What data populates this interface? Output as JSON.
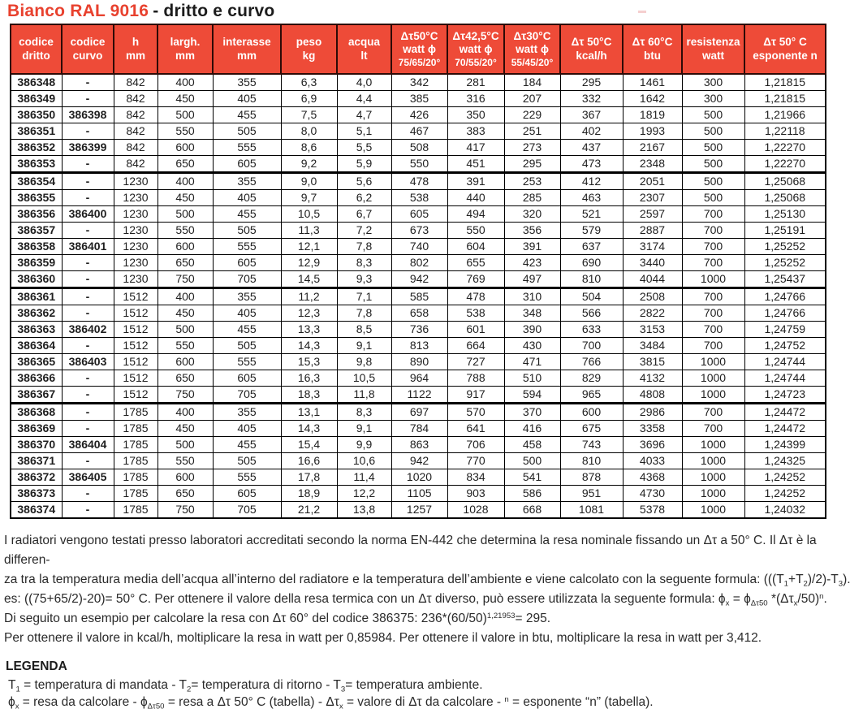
{
  "title": {
    "product": "Bianco RAL 9016",
    "variant": "- dritto e curvo"
  },
  "colors": {
    "header_bg": "#ee4b38",
    "header_border": "#2d0a06",
    "title_red": "#e8412e",
    "text": "#1f1f1f"
  },
  "table": {
    "headers": [
      [
        "codice",
        "dritto"
      ],
      [
        "codice",
        "curvo"
      ],
      [
        "h",
        "mm"
      ],
      [
        "largh.",
        "mm"
      ],
      [
        "interasse",
        "mm"
      ],
      [
        "peso",
        "kg"
      ],
      [
        "acqua",
        "lt"
      ],
      [
        "Δτ50°C",
        "watt ϕ",
        "75/65/20°"
      ],
      [
        "Δτ42,5°C",
        "watt ϕ",
        "70/55/20°"
      ],
      [
        "Δτ30°C",
        "watt ϕ",
        "55/45/20°"
      ],
      [
        "Δτ 50°C",
        "kcal/h"
      ],
      [
        "Δτ 60°C",
        "btu"
      ],
      [
        "resistenza",
        "watt"
      ],
      [
        "Δτ 50° C",
        "esponente n"
      ]
    ],
    "rows": [
      [
        "386348",
        "-",
        "842",
        "400",
        "355",
        "6,3",
        "4,0",
        "342",
        "281",
        "184",
        "295",
        "1461",
        "300",
        "1,21815"
      ],
      [
        "386349",
        "-",
        "842",
        "450",
        "405",
        "6,9",
        "4,4",
        "385",
        "316",
        "207",
        "332",
        "1642",
        "300",
        "1,21815"
      ],
      [
        "386350",
        "386398",
        "842",
        "500",
        "455",
        "7,5",
        "4,7",
        "426",
        "350",
        "229",
        "367",
        "1819",
        "500",
        "1,21966"
      ],
      [
        "386351",
        "-",
        "842",
        "550",
        "505",
        "8,0",
        "5,1",
        "467",
        "383",
        "251",
        "402",
        "1993",
        "500",
        "1,22118"
      ],
      [
        "386352",
        "386399",
        "842",
        "600",
        "555",
        "8,6",
        "5,5",
        "508",
        "417",
        "273",
        "437",
        "2167",
        "500",
        "1,22270"
      ],
      [
        "386353",
        "-",
        "842",
        "650",
        "605",
        "9,2",
        "5,9",
        "550",
        "451",
        "295",
        "473",
        "2348",
        "500",
        "1,22270"
      ],
      [
        "386354",
        "-",
        "1230",
        "400",
        "355",
        "9,0",
        "5,6",
        "478",
        "391",
        "253",
        "412",
        "2051",
        "500",
        "1,25068"
      ],
      [
        "386355",
        "-",
        "1230",
        "450",
        "405",
        "9,7",
        "6,2",
        "538",
        "440",
        "285",
        "463",
        "2307",
        "500",
        "1,25068"
      ],
      [
        "386356",
        "386400",
        "1230",
        "500",
        "455",
        "10,5",
        "6,7",
        "605",
        "494",
        "320",
        "521",
        "2597",
        "700",
        "1,25130"
      ],
      [
        "386357",
        "-",
        "1230",
        "550",
        "505",
        "11,3",
        "7,2",
        "673",
        "550",
        "356",
        "579",
        "2887",
        "700",
        "1,25191"
      ],
      [
        "386358",
        "386401",
        "1230",
        "600",
        "555",
        "12,1",
        "7,8",
        "740",
        "604",
        "391",
        "637",
        "3174",
        "700",
        "1,25252"
      ],
      [
        "386359",
        "-",
        "1230",
        "650",
        "605",
        "12,9",
        "8,3",
        "802",
        "655",
        "423",
        "690",
        "3440",
        "700",
        "1,25252"
      ],
      [
        "386360",
        "-",
        "1230",
        "750",
        "705",
        "14,5",
        "9,3",
        "942",
        "769",
        "497",
        "810",
        "4044",
        "1000",
        "1,25437"
      ],
      [
        "386361",
        "-",
        "1512",
        "400",
        "355",
        "11,2",
        "7,1",
        "585",
        "478",
        "310",
        "504",
        "2508",
        "700",
        "1,24766"
      ],
      [
        "386362",
        "-",
        "1512",
        "450",
        "405",
        "12,3",
        "7,8",
        "658",
        "538",
        "348",
        "566",
        "2822",
        "700",
        "1,24766"
      ],
      [
        "386363",
        "386402",
        "1512",
        "500",
        "455",
        "13,3",
        "8,5",
        "736",
        "601",
        "390",
        "633",
        "3153",
        "700",
        "1,24759"
      ],
      [
        "386364",
        "-",
        "1512",
        "550",
        "505",
        "14,3",
        "9,1",
        "813",
        "664",
        "430",
        "700",
        "3484",
        "700",
        "1,24752"
      ],
      [
        "386365",
        "386403",
        "1512",
        "600",
        "555",
        "15,3",
        "9,8",
        "890",
        "727",
        "471",
        "766",
        "3815",
        "1000",
        "1,24744"
      ],
      [
        "386366",
        "-",
        "1512",
        "650",
        "605",
        "16,3",
        "10,5",
        "964",
        "788",
        "510",
        "829",
        "4132",
        "1000",
        "1,24744"
      ],
      [
        "386367",
        "-",
        "1512",
        "750",
        "705",
        "18,3",
        "11,8",
        "1122",
        "917",
        "594",
        "965",
        "4808",
        "1000",
        "1,24723"
      ],
      [
        "386368",
        "-",
        "1785",
        "400",
        "355",
        "13,1",
        "8,3",
        "697",
        "570",
        "370",
        "600",
        "2986",
        "700",
        "1,24472"
      ],
      [
        "386369",
        "-",
        "1785",
        "450",
        "405",
        "14,3",
        "9,1",
        "784",
        "641",
        "416",
        "675",
        "3358",
        "700",
        "1,24472"
      ],
      [
        "386370",
        "386404",
        "1785",
        "500",
        "455",
        "15,4",
        "9,9",
        "863",
        "706",
        "458",
        "743",
        "3696",
        "1000",
        "1,24399"
      ],
      [
        "386371",
        "-",
        "1785",
        "550",
        "505",
        "16,6",
        "10,6",
        "942",
        "770",
        "500",
        "810",
        "4033",
        "1000",
        "1,24325"
      ],
      [
        "386372",
        "386405",
        "1785",
        "600",
        "555",
        "17,8",
        "11,4",
        "1020",
        "834",
        "541",
        "878",
        "4368",
        "1000",
        "1,24252"
      ],
      [
        "386373",
        "-",
        "1785",
        "650",
        "605",
        "18,9",
        "12,2",
        "1105",
        "903",
        "586",
        "951",
        "4730",
        "1000",
        "1,24252"
      ],
      [
        "386374",
        "-",
        "1785",
        "750",
        "705",
        "21,2",
        "13,8",
        "1257",
        "1028",
        "668",
        "1081",
        "5378",
        "1000",
        "1,24032"
      ]
    ]
  },
  "notes": {
    "lines": [
      "I radiatori vengono testati presso laboratori accreditati secondo la norma EN-442 che determina la resa nominale fissando un Δτ a 50° C. Il Δτ è la differen-",
      "za tra la temperatura media dell’acqua all’interno del radiatore e la temperatura dell’ambiente e viene calcolato con la seguente formula: (((T<sub>1</sub>+T<sub>2</sub>)/2)-T<sub>3</sub>).",
      "es: ((75+65/2)-20)= 50° C. Per ottenere il valore della resa termica con un Δτ diverso, può essere utilizzata la seguente formula: ϕ<sub>x</sub> = ϕ<sub>Δτ50</sub> *(Δτ<sub>x</sub>/50)<sup>n</sup>.",
      "Di seguito un esempio per calcolare la resa con Δτ 60° del codice 386375: 236*(60/50)<sup>1,21953</sup>= 295.",
      "Per ottenere il valore in kcal/h, moltiplicare la resa in watt per 0,85984. Per ottenere il valore in btu, moltiplicare la resa in watt per 3,412."
    ]
  },
  "legend": {
    "title": "LEGENDA",
    "lines": [
      "T<sub>1</sub> = temperatura di mandata - T<sub>2</sub>= temperatura di ritorno - T<sub>3</sub>= temperatura ambiente.",
      "ϕ<sub>x</sub> = resa da calcolare - ϕ<sub>Δτ50</sub> = resa a Δτ 50° C (tabella) - Δτ<sub>x</sub> = valore di Δτ da calcolare - <sup>n</sup> = esponente “n” (tabella)."
    ]
  }
}
